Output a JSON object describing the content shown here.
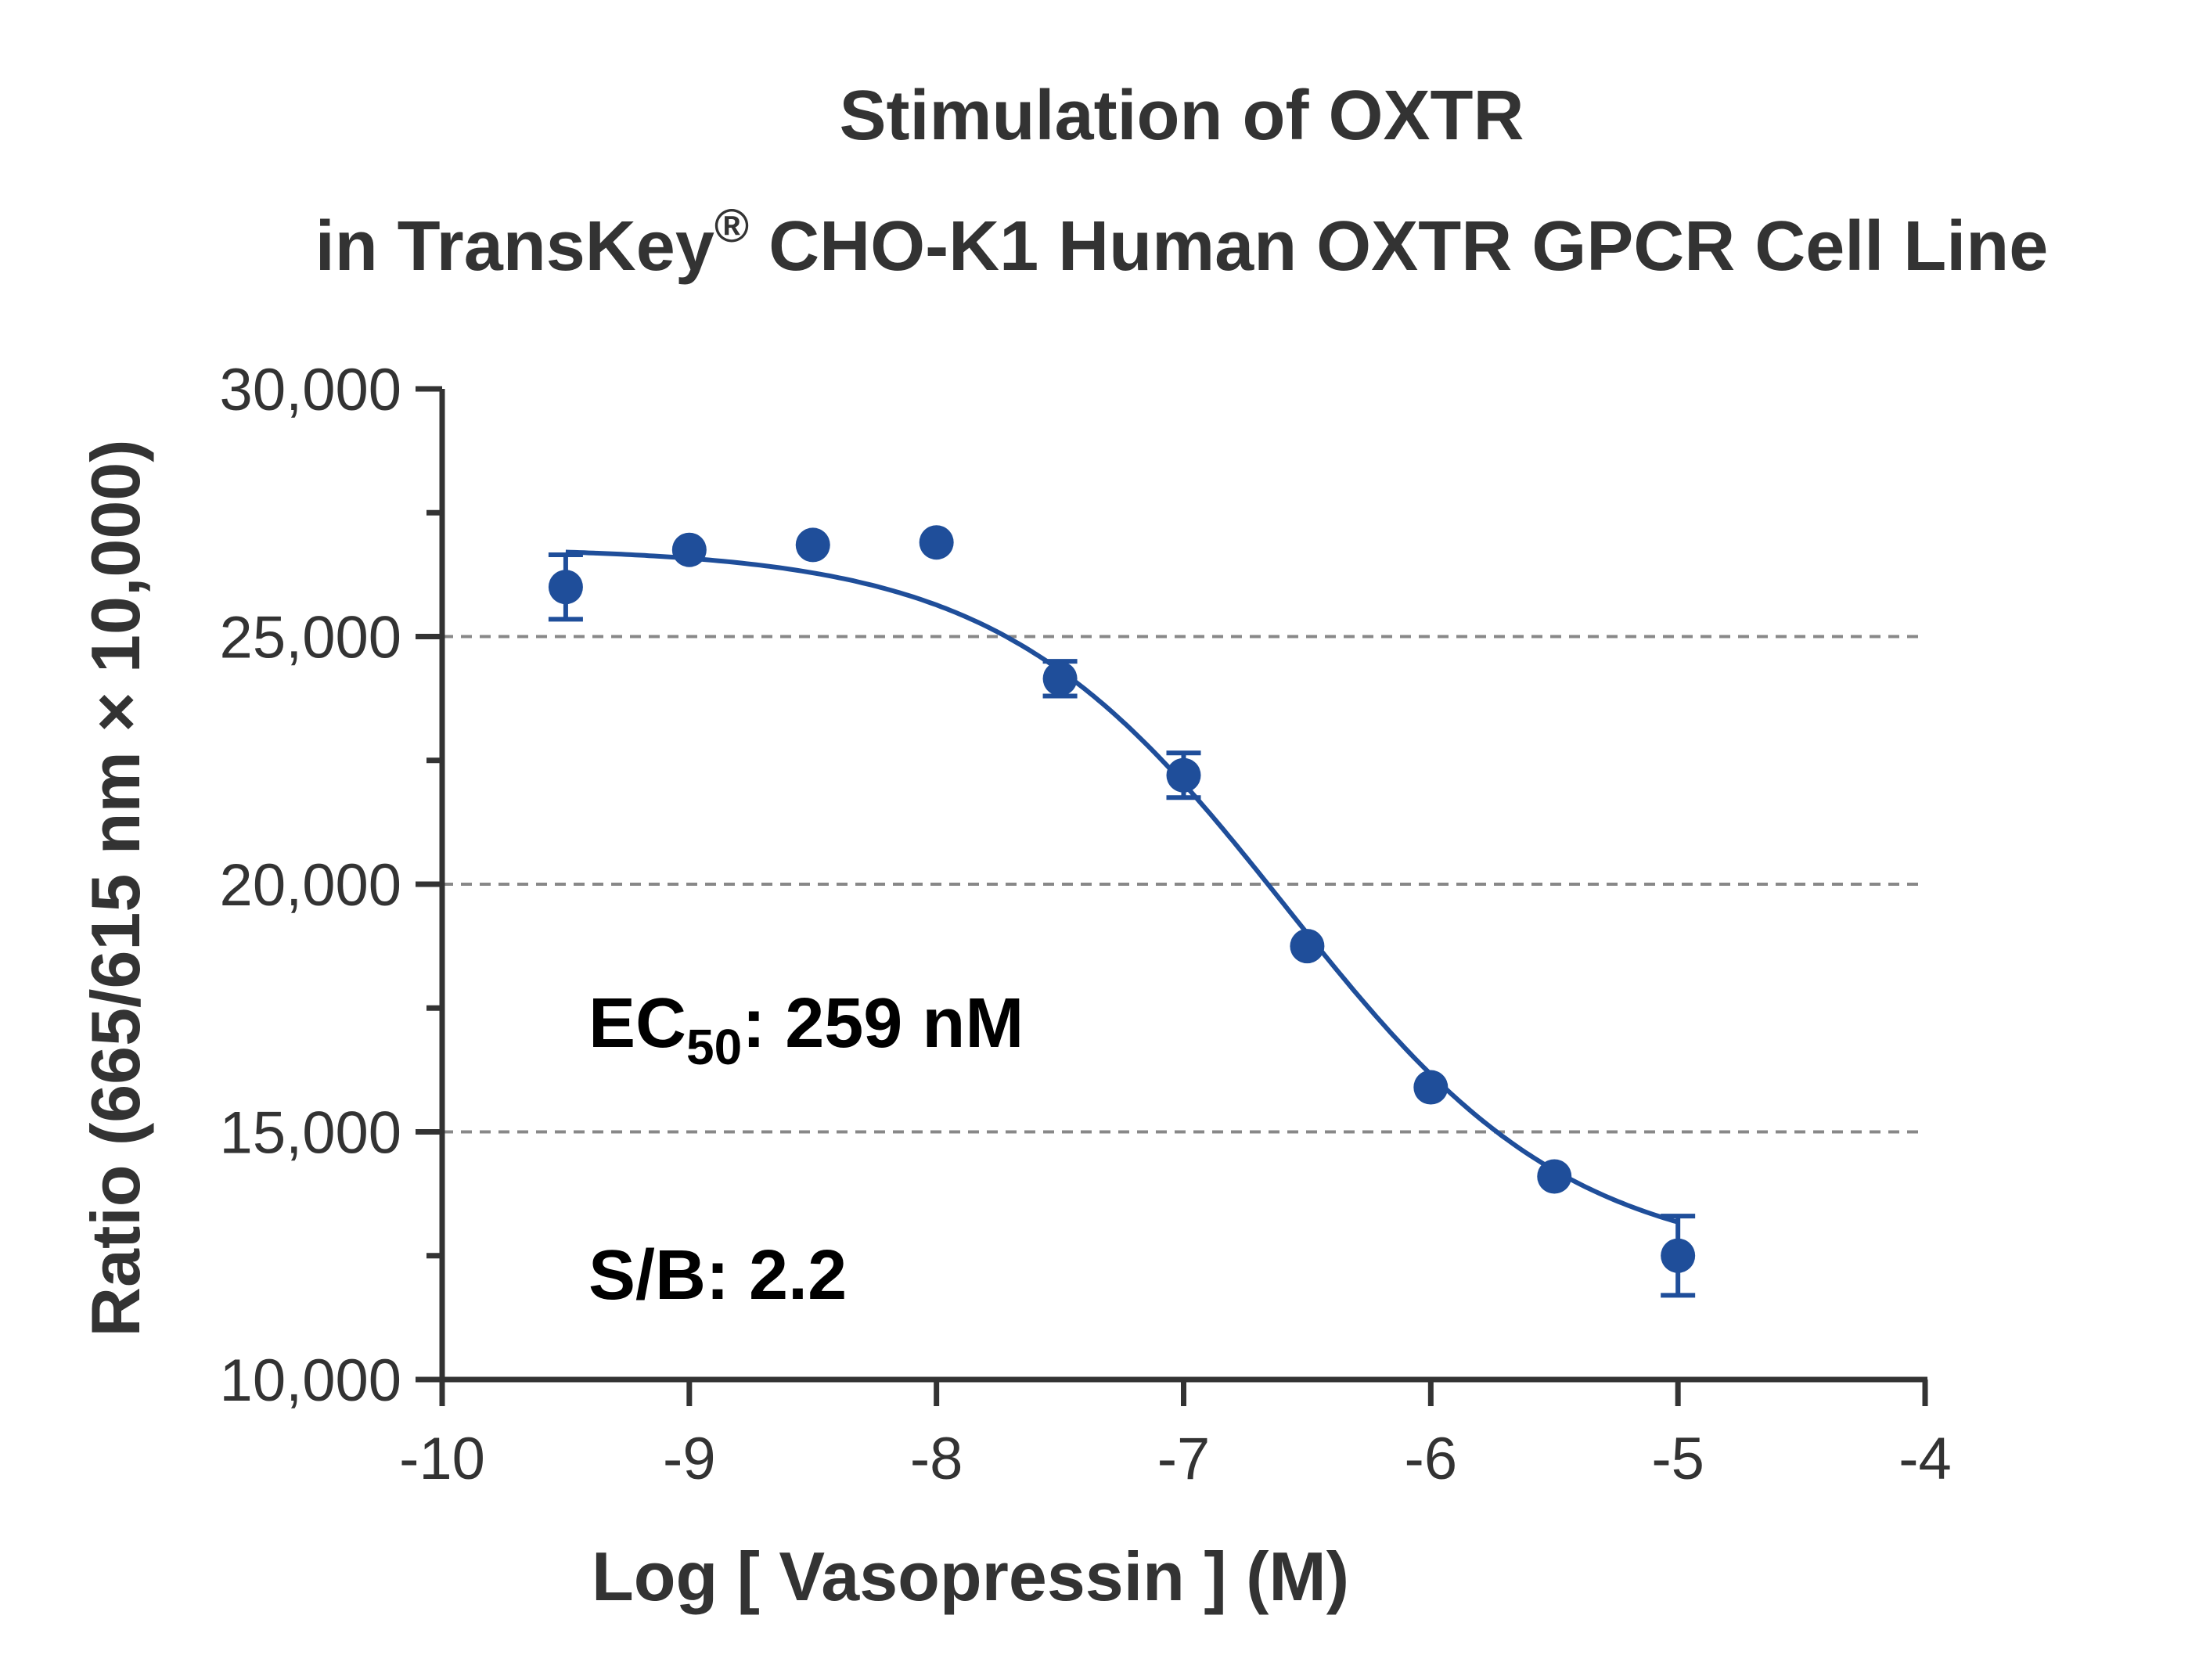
{
  "chart_data": {
    "type": "scatter",
    "title_line1": "Stimulation of  OXTR",
    "title_line2_prefix": "in TransKey",
    "title_line2_mark": "®",
    "title_line2_suffix": " CHO-K1 Human OXTR GPCR Cell Line",
    "xlabel": "Log [  Vasopressin ]  (M)",
    "ylabel": "Ratio (665/615 nm × 10,000)",
    "xlim": [
      -10,
      -4
    ],
    "ylim": [
      10000,
      30000
    ],
    "x_ticks": [
      -10,
      -9,
      -8,
      -7,
      -6,
      -5,
      -4
    ],
    "x_tick_labels": [
      "-10",
      "-9",
      "-8",
      "-7",
      "-6",
      "-5",
      "-4"
    ],
    "y_ticks": [
      10000,
      15000,
      20000,
      25000,
      30000
    ],
    "y_tick_labels": [
      "10,000",
      "15,000",
      "20,000",
      "25,000",
      "30,000"
    ],
    "y_minor_ticks": [
      12500,
      17500,
      22500,
      27500
    ],
    "gridlines_y": [
      15000,
      20000,
      25000
    ],
    "grid": "horizontal dashed",
    "colors": {
      "series": "#1f4e9a",
      "axis": "#333333",
      "grid": "#888888"
    },
    "series": [
      {
        "x": [
          -9.5,
          -9.0,
          -8.5,
          -8.0,
          -7.5,
          -7.0,
          -6.5,
          -6.0,
          -5.5,
          -5.0
        ],
        "y": [
          26000,
          26750,
          26850,
          26900,
          24150,
          22200,
          18750,
          15900,
          14100,
          12500
        ],
        "error": [
          650,
          0,
          0,
          0,
          350,
          450,
          0,
          0,
          0,
          800
        ]
      }
    ],
    "fit": {
      "model": "4PL",
      "top": 26800,
      "bottom": 12300,
      "logEC50": -6.587,
      "hill": -0.75
    },
    "annotations": {
      "ec50_prefix": "EC",
      "ec50_sub": "50",
      "ec50_value": ": 259 nM",
      "sb": "S/B: 2.2"
    }
  }
}
